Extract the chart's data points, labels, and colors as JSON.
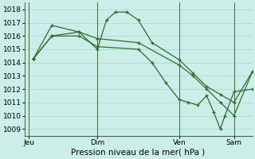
{
  "background_color": "#cceee8",
  "grid_color": "#aaddcc",
  "line_color": "#2d6e2d",
  "marker_color": "#2d6e2d",
  "ylim": [
    1008.5,
    1018.5
  ],
  "yticks": [
    1009,
    1010,
    1011,
    1012,
    1013,
    1014,
    1015,
    1016,
    1017,
    1018
  ],
  "xlabel": "Pression niveau de la mer( hPa )",
  "xlabel_fontsize": 7.5,
  "tick_fontsize": 6.5,
  "xtick_labels": [
    "Jeu",
    "Dim",
    "Ven",
    "Sam"
  ],
  "xtick_positions": [
    0,
    30,
    66,
    90
  ],
  "vline_positions": [
    0,
    30,
    66,
    90
  ],
  "xlim": [
    -2,
    98
  ],
  "series": [
    {
      "x": [
        2,
        10,
        22,
        30,
        34,
        38,
        43,
        48,
        54,
        66,
        72,
        78,
        84,
        90,
        98
      ],
      "y": [
        1014.3,
        1016.0,
        1016.3,
        1015.0,
        1017.2,
        1017.8,
        1017.8,
        1017.2,
        1015.5,
        1014.2,
        1013.2,
        1012.2,
        1011.6,
        1011.0,
        1013.3
      ]
    },
    {
      "x": [
        2,
        10,
        22,
        30,
        48,
        66,
        72,
        78,
        84,
        90,
        98
      ],
      "y": [
        1014.3,
        1016.8,
        1016.3,
        1015.8,
        1015.5,
        1013.8,
        1013.0,
        1012.0,
        1011.0,
        1010.0,
        1013.3
      ]
    },
    {
      "x": [
        2,
        10,
        22,
        30,
        48,
        54,
        60,
        66,
        70,
        74,
        78,
        81,
        84,
        86,
        90,
        98
      ],
      "y": [
        1014.3,
        1016.0,
        1016.0,
        1015.2,
        1015.0,
        1014.0,
        1012.5,
        1011.2,
        1011.0,
        1010.8,
        1011.5,
        1010.3,
        1009.0,
        1010.0,
        1011.8,
        1012.0
      ]
    }
  ]
}
